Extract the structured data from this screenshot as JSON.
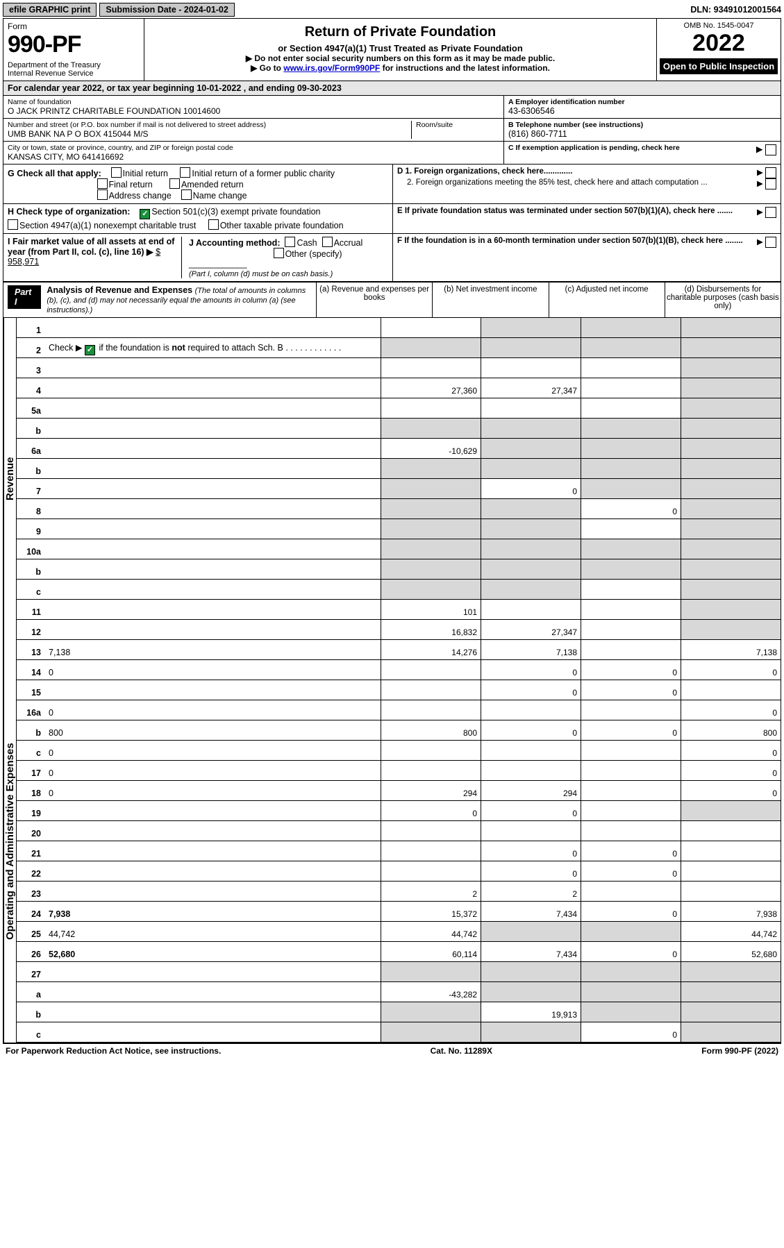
{
  "top": {
    "efile": "efile GRAPHIC print",
    "submission": "Submission Date - 2024-01-02",
    "dln": "DLN: 93491012001564"
  },
  "header": {
    "formLabel": "Form",
    "formNumber": "990-PF",
    "dept": "Department of the Treasury\nInternal Revenue Service",
    "title": "Return of Private Foundation",
    "sub1": "or Section 4947(a)(1) Trust Treated as Private Foundation",
    "sub2a": "▶ Do not enter social security numbers on this form as it may be made public.",
    "sub2b": "▶ Go to ",
    "sub2link": "www.irs.gov/Form990PF",
    "sub2c": " for instructions and the latest information.",
    "omb": "OMB No. 1545-0047",
    "year": "2022",
    "open": "Open to Public Inspection"
  },
  "cal": "For calendar year 2022, or tax year beginning 10-01-2022                              , and ending 09-30-2023",
  "foundation": {
    "nameLbl": "Name of foundation",
    "name": "O JACK PRINTZ CHARITABLE FOUNDATION 10014600",
    "addrLbl": "Number and street (or P.O. box number if mail is not delivered to street address)",
    "addr": "UMB BANK NA P O BOX 415044 M/S",
    "roomLbl": "Room/suite",
    "cityLbl": "City or town, state or province, country, and ZIP or foreign postal code",
    "city": "KANSAS CITY, MO  641416692",
    "einLbl": "A Employer identification number",
    "ein": "43-6306546",
    "phoneLbl": "B Telephone number (see instructions)",
    "phone": "(816) 860-7711",
    "pendingLbl": "C If exemption application is pending, check here"
  },
  "g": {
    "label": "G Check all that apply:",
    "opts": [
      "Initial return",
      "Initial return of a former public charity",
      "Final return",
      "Amended return",
      "Address change",
      "Name change"
    ]
  },
  "h": {
    "label": "H Check type of organization:",
    "a": "Section 501(c)(3) exempt private foundation",
    "b": "Section 4947(a)(1) nonexempt charitable trust",
    "c": "Other taxable private foundation"
  },
  "i": {
    "label": "I Fair market value of all assets at end of year (from Part II, col. (c), line 16) ▶",
    "val": "$  958,971"
  },
  "j": {
    "label": "J Accounting method:",
    "cash": "Cash",
    "accrual": "Accrual",
    "other": "Other (specify)",
    "note": "(Part I, column (d) must be on cash basis.)"
  },
  "d": {
    "d1": "D 1. Foreign organizations, check here.............",
    "d2": "2. Foreign organizations meeting the 85% test, check here and attach computation ...",
    "e": "E  If private foundation status was terminated under section 507(b)(1)(A), check here .......",
    "f": "F  If the foundation is in a 60-month termination under section 507(b)(1)(B), check here ........"
  },
  "part1": {
    "title": "Part I",
    "heading": "Analysis of Revenue and Expenses",
    "note": "(The total of amounts in columns (b), (c), and (d) may not necessarily equal the amounts in column (a) (see instructions).)",
    "cols": {
      "a": "(a) Revenue and expenses per books",
      "b": "(b) Net investment income",
      "c": "(c) Adjusted net income",
      "d": "(d) Disbursements for charitable purposes (cash basis only)"
    }
  },
  "sideRev": "Revenue",
  "sideExp": "Operating and Administrative Expenses",
  "lines": [
    {
      "n": "1",
      "d": "",
      "a": "",
      "b": "",
      "c": "",
      "sh": [
        "b",
        "c",
        "d"
      ]
    },
    {
      "n": "2",
      "d": "",
      "a": "",
      "b": "",
      "c": "",
      "sh": [
        "a",
        "b",
        "c",
        "d"
      ],
      "chk": true
    },
    {
      "n": "3",
      "d": "",
      "a": "",
      "b": "",
      "c": "",
      "sh": [
        "d"
      ]
    },
    {
      "n": "4",
      "d": "",
      "a": "27,360",
      "b": "27,347",
      "c": "",
      "sh": [
        "d"
      ]
    },
    {
      "n": "5a",
      "d": "",
      "a": "",
      "b": "",
      "c": "",
      "sh": [
        "d"
      ]
    },
    {
      "n": "b",
      "d": "",
      "a": "",
      "b": "",
      "c": "",
      "sh": [
        "a",
        "b",
        "c",
        "d"
      ]
    },
    {
      "n": "6a",
      "d": "",
      "a": "-10,629",
      "b": "",
      "c": "",
      "sh": [
        "b",
        "c",
        "d"
      ]
    },
    {
      "n": "b",
      "d": "",
      "a": "",
      "b": "",
      "c": "",
      "sh": [
        "a",
        "b",
        "c",
        "d"
      ]
    },
    {
      "n": "7",
      "d": "",
      "a": "",
      "b": "0",
      "c": "",
      "sh": [
        "a",
        "c",
        "d"
      ]
    },
    {
      "n": "8",
      "d": "",
      "a": "",
      "b": "",
      "c": "0",
      "sh": [
        "a",
        "b",
        "d"
      ]
    },
    {
      "n": "9",
      "d": "",
      "a": "",
      "b": "",
      "c": "",
      "sh": [
        "a",
        "b",
        "d"
      ]
    },
    {
      "n": "10a",
      "d": "",
      "a": "",
      "b": "",
      "c": "",
      "sh": [
        "a",
        "b",
        "c",
        "d"
      ]
    },
    {
      "n": "b",
      "d": "",
      "a": "",
      "b": "",
      "c": "",
      "sh": [
        "a",
        "b",
        "c",
        "d"
      ]
    },
    {
      "n": "c",
      "d": "",
      "a": "",
      "b": "",
      "c": "",
      "sh": [
        "a",
        "b",
        "d"
      ]
    },
    {
      "n": "11",
      "d": "",
      "a": "101",
      "b": "",
      "c": "",
      "sh": [
        "d"
      ]
    },
    {
      "n": "12",
      "d": "",
      "a": "16,832",
      "b": "27,347",
      "c": "",
      "sh": [
        "d"
      ],
      "bold": true
    }
  ],
  "expLines": [
    {
      "n": "13",
      "d": "7,138",
      "a": "14,276",
      "b": "7,138",
      "c": ""
    },
    {
      "n": "14",
      "d": "0",
      "a": "",
      "b": "0",
      "c": "0"
    },
    {
      "n": "15",
      "d": "",
      "a": "",
      "b": "0",
      "c": "0"
    },
    {
      "n": "16a",
      "d": "0",
      "a": "",
      "b": "",
      "c": ""
    },
    {
      "n": "b",
      "d": "800",
      "a": "800",
      "b": "0",
      "c": "0"
    },
    {
      "n": "c",
      "d": "0",
      "a": "",
      "b": "",
      "c": ""
    },
    {
      "n": "17",
      "d": "0",
      "a": "",
      "b": "",
      "c": ""
    },
    {
      "n": "18",
      "d": "0",
      "a": "294",
      "b": "294",
      "c": ""
    },
    {
      "n": "19",
      "d": "",
      "a": "0",
      "b": "0",
      "c": "",
      "sh": [
        "d"
      ]
    },
    {
      "n": "20",
      "d": "",
      "a": "",
      "b": "",
      "c": ""
    },
    {
      "n": "21",
      "d": "",
      "a": "",
      "b": "0",
      "c": "0"
    },
    {
      "n": "22",
      "d": "",
      "a": "",
      "b": "0",
      "c": "0"
    },
    {
      "n": "23",
      "d": "",
      "a": "2",
      "b": "2",
      "c": ""
    },
    {
      "n": "24",
      "d": "7,938",
      "a": "15,372",
      "b": "7,434",
      "c": "0",
      "bold": true
    },
    {
      "n": "25",
      "d": "44,742",
      "a": "44,742",
      "b": "",
      "c": "",
      "sh": [
        "b",
        "c"
      ]
    },
    {
      "n": "26",
      "d": "52,680",
      "a": "60,114",
      "b": "7,434",
      "c": "0",
      "bold": true
    },
    {
      "n": "27",
      "d": "",
      "a": "",
      "b": "",
      "c": "",
      "sh": [
        "a",
        "b",
        "c",
        "d"
      ]
    },
    {
      "n": "a",
      "d": "",
      "a": "-43,282",
      "b": "",
      "c": "",
      "sh": [
        "b",
        "c",
        "d"
      ],
      "bold": true
    },
    {
      "n": "b",
      "d": "",
      "a": "",
      "b": "19,913",
      "c": "",
      "sh": [
        "a",
        "c",
        "d"
      ],
      "bold": true
    },
    {
      "n": "c",
      "d": "",
      "a": "",
      "b": "",
      "c": "0",
      "sh": [
        "a",
        "b",
        "d"
      ],
      "bold": true
    }
  ],
  "footer": {
    "left": "For Paperwork Reduction Act Notice, see instructions.",
    "mid": "Cat. No. 11289X",
    "right": "Form 990-PF (2022)"
  }
}
